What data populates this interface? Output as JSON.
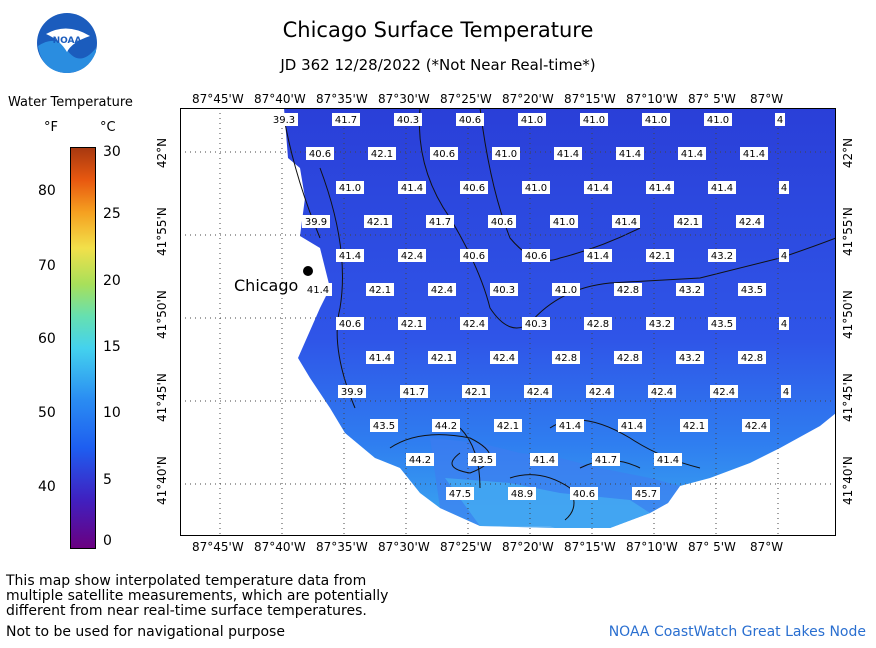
{
  "header": {
    "title": "Chicago Surface Temperature",
    "subtitle": "JD 362 12/28/2022 (*Not Near Real-time*)",
    "logo_text": "NOAA"
  },
  "legend": {
    "title": "Water Temperature",
    "unit_f": "°F",
    "unit_c": "°C",
    "f_ticks": [
      "80",
      "70",
      "60",
      "50",
      "40"
    ],
    "c_ticks": [
      "30",
      "25",
      "20",
      "15",
      "10",
      "5",
      "0"
    ]
  },
  "map": {
    "city_label": "Chicago",
    "lon_labels": [
      "87°45'W",
      "87°40'W",
      "87°35'W",
      "87°30'W",
      "87°25'W",
      "87°20'W",
      "87°15'W",
      "87°10'W",
      "87° 5'W",
      "87°W"
    ],
    "lat_labels": [
      "42°N",
      "41°55'N",
      "41°50'N",
      "41°45'N",
      "41°40'N"
    ],
    "temperature_labels": [
      [
        "39.3",
        "41.7",
        "40.3",
        "40.6",
        "41.0",
        "41.0",
        "41.0",
        "41.0",
        "4"
      ],
      [
        "40.6",
        "42.1",
        "40.6",
        "41.0",
        "41.4",
        "41.4",
        "41.4",
        "41.4"
      ],
      [
        "41.0",
        "41.4",
        "40.6",
        "41.0",
        "41.4",
        "41.4",
        "41.4",
        "4"
      ],
      [
        "39.9",
        "42.1",
        "41.7",
        "40.6",
        "41.0",
        "41.4",
        "42.1",
        "42.4"
      ],
      [
        "41.4",
        "42.4",
        "40.6",
        "40.6",
        "41.4",
        "42.1",
        "43.2",
        "4"
      ],
      [
        "41.4",
        "42.1",
        "42.4",
        "40.3",
        "41.0",
        "42.8",
        "43.2",
        "43.5"
      ],
      [
        "40.6",
        "42.1",
        "42.4",
        "40.3",
        "42.8",
        "43.2",
        "43.5",
        "4"
      ],
      [
        "41.4",
        "42.1",
        "42.4",
        "42.8",
        "42.8",
        "43.2",
        "42.8"
      ],
      [
        "39.9",
        "41.7",
        "42.1",
        "42.4",
        "42.4",
        "42.4",
        "42.4",
        "4"
      ],
      [
        "43.5",
        "44.2",
        "42.1",
        "41.4",
        "41.4",
        "42.1",
        "42.4"
      ],
      [
        "44.2",
        "43.5",
        "41.4",
        "41.7",
        "41.4"
      ],
      [
        "47.5",
        "48.9",
        "40.6",
        "45.7"
      ]
    ]
  },
  "notes": {
    "line1": "This map show interpolated temperature data from",
    "line2": "multiple satellite measurements, which are potentially",
    "line3": "different from near real-time surface temperatures.",
    "line4": "Not to be used for navigational purpose",
    "credit": "NOAA CoastWatch Great Lakes Node"
  },
  "colors": {
    "water_deep": "#2a3fd8",
    "water_mid": "#2f63ec",
    "water_warm": "#3aa8f0",
    "credit": "#2a6fd0"
  }
}
